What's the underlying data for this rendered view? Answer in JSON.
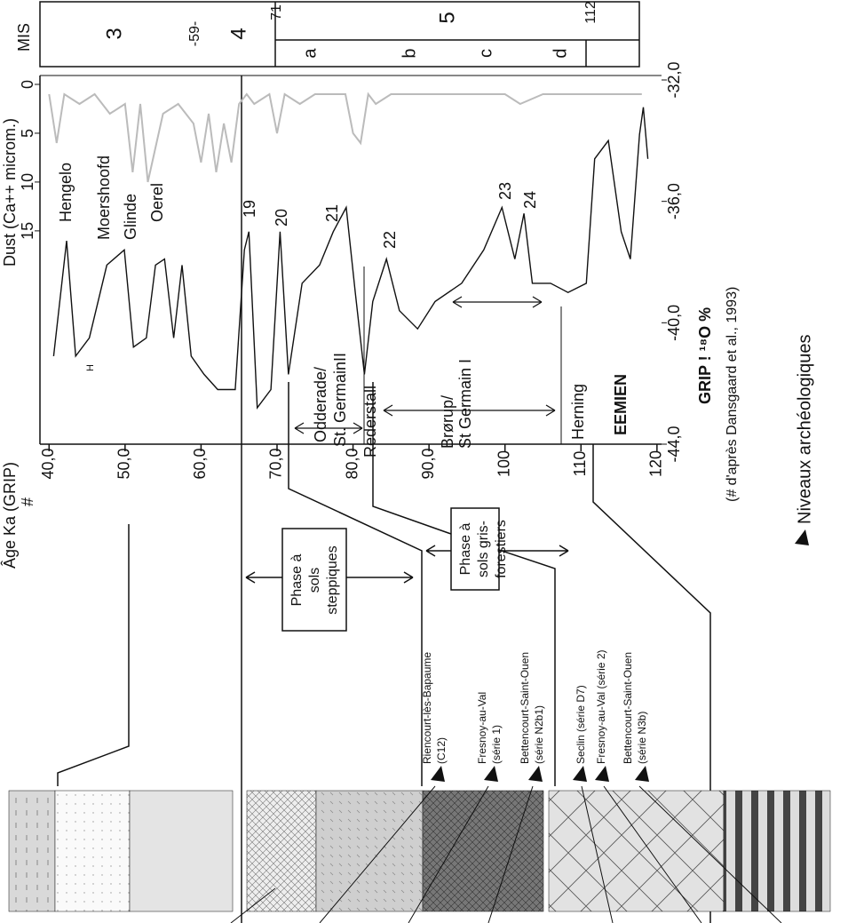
{
  "chart_data": {
    "type": "line",
    "xlabel": "Âge Ka (GRIP)",
    "xlabel_mark": "#",
    "ylabel": "GRIP ! ¹⁸O %",
    "y2label": "Dust (Ca++ microm.)",
    "note": "(# d'après Dansgaard et al., 1993)",
    "xlim": [
      38.8,
      120.6
    ],
    "ylim": [
      -44,
      -32
    ],
    "y2lim": [
      0,
      37.3
    ],
    "xticks": [
      {
        "value": 40,
        "label": "40,0"
      },
      {
        "value": 50,
        "label": "50,0"
      },
      {
        "value": 60,
        "label": "60,0"
      },
      {
        "value": 70,
        "label": "70,0"
      },
      {
        "value": 80,
        "label": "80,0"
      },
      {
        "value": 90,
        "label": "90,0"
      },
      100,
      110,
      120
    ],
    "yticks": [
      {
        "value": -44,
        "label": "-44,0"
      },
      {
        "value": -40,
        "label": "-40,0"
      },
      {
        "value": -36,
        "label": "-36,0"
      },
      {
        "value": -32,
        "label": "-32,0"
      }
    ],
    "y2ticks": [
      0,
      5,
      10,
      15
    ],
    "series": [
      {
        "color": "#111111",
        "x": [
          40.6,
          42.3,
          43.5,
          45.3,
          47.6,
          49.9,
          51.1,
          52.8,
          54.0,
          55.2,
          56.4,
          57.5,
          58.7,
          60.4,
          62.2,
          64.5,
          65.7,
          66.3,
          67.4,
          69.2,
          70.4,
          71.5,
          73.3,
          75.6,
          77.4,
          79.1,
          80.3,
          81.5,
          82.6,
          84.4,
          86.1,
          88.5,
          90.8,
          94.3,
          97.2,
          99.6,
          101.3,
          102.5,
          103.6,
          106.0,
          108.3,
          110.7,
          111.8,
          113.6,
          115.3,
          116.5,
          117.7,
          118.2,
          118.8
        ],
        "values": [
          -41.1,
          -37.3,
          -41.1,
          -40.5,
          -38.1,
          -37.6,
          -40.8,
          -40.5,
          -38.1,
          -37.9,
          -40.5,
          -38.1,
          -41.1,
          -41.7,
          -42.2,
          -42.2,
          -37.6,
          -37.0,
          -42.8,
          -42.2,
          -37.0,
          -41.7,
          -38.7,
          -38.1,
          -37.0,
          -36.2,
          -39.0,
          -41.7,
          -39.3,
          -37.9,
          -39.6,
          -40.2,
          -39.3,
          -38.7,
          -37.6,
          -36.2,
          -37.9,
          -36.4,
          -38.7,
          -38.7,
          -39.0,
          -38.7,
          -34.6,
          -34.0,
          -37.0,
          -37.9,
          -33.8,
          -32.9,
          -34.6
        ]
      },
      {
        "color": "#bbbbbb",
        "axis": "y2",
        "x": [
          40,
          41,
          42,
          44,
          46,
          48,
          50,
          51,
          52,
          53,
          55,
          57,
          59,
          60,
          61,
          62,
          63,
          64,
          65,
          66,
          67,
          69,
          70,
          71,
          73,
          75,
          79,
          80,
          81,
          82,
          83,
          85,
          90,
          95,
          100,
          102,
          105,
          110,
          114,
          118
        ],
        "values": [
          1,
          6,
          1,
          2,
          1,
          3,
          2,
          9,
          2,
          10,
          3,
          2,
          4,
          8,
          3,
          9,
          4,
          8,
          2,
          1,
          2,
          1,
          5,
          1,
          2,
          1,
          1,
          5,
          6,
          1,
          2,
          1,
          1,
          1,
          1,
          2,
          1,
          1,
          1,
          1
        ]
      }
    ],
    "annotations": [
      "Hengelo",
      "Moershoofd",
      "Glinde",
      "Oerel",
      "H",
      "19",
      "20",
      "21",
      "22",
      "23",
      "24",
      "Odderade/",
      "St. GermainII",
      "Rederstall",
      "Brørup/",
      "St Germain I",
      "Herning",
      "EEMIEN"
    ]
  },
  "mis": {
    "title": "MIS",
    "stages": [
      "3",
      "4",
      "5"
    ],
    "boundaries": [
      "-59-",
      "71",
      "112"
    ],
    "substages": [
      "a",
      "b",
      "c",
      "d"
    ]
  },
  "phases": [
    [
      "Phase à",
      "sols",
      "steppiques"
    ],
    [
      "Phase à",
      "sols gris-",
      "forestiers"
    ]
  ],
  "sites": [
    [
      "Riencourt-lès-Bapaume",
      "(C12)"
    ],
    [
      "Fresnoy-au-Val",
      "(série 1)"
    ],
    [
      "Bettencourt-Saint-Ouen",
      "(série N2b1)"
    ],
    [
      "Seclin (série D7)"
    ],
    [
      "Fresnoy-au-Val (série 2)"
    ],
    [
      "Bettencourt-Saint-Ouen",
      "(série N3b)"
    ]
  ],
  "legend": "Niveaux archéologiques"
}
